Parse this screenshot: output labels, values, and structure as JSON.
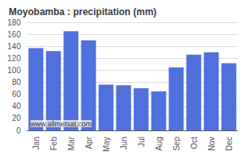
{
  "chart_data": {
    "type": "bar",
    "title": "Moyobamba : precipitation (mm)",
    "categories": [
      "Jan",
      "Feb",
      "Mar",
      "Apr",
      "May",
      "Jun",
      "Jul",
      "Aug",
      "Sep",
      "Oct",
      "Nov",
      "Dec"
    ],
    "values": [
      137,
      132,
      165,
      150,
      76,
      75,
      70,
      65,
      105,
      126,
      130,
      112
    ],
    "ylim": [
      0,
      180
    ],
    "yticks": [
      0,
      20,
      40,
      60,
      80,
      100,
      120,
      140,
      160,
      180
    ],
    "grid": true,
    "annotations": [
      "www.allmetsat.com"
    ]
  }
}
